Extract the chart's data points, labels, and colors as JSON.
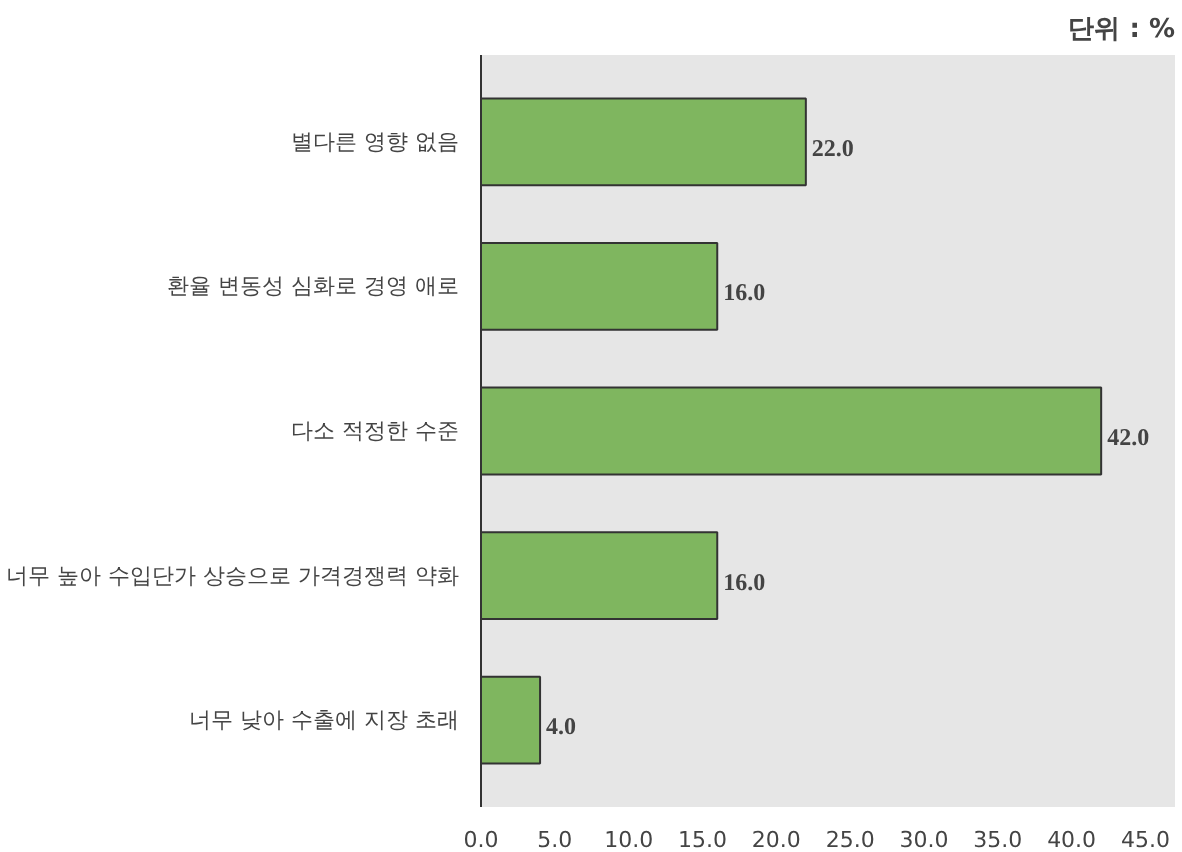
{
  "chart_data": {
    "type": "bar",
    "orientation": "horizontal",
    "annotations": [
      "단위 : %"
    ],
    "categories": [
      "별다른 영향 없음",
      "환율 변동성 심화로 경영 애로",
      "다소 적정한 수준",
      "너무 높아 수입단가 상승으로 가격경쟁력 약화",
      "너무 낮아 수출에 지장 초래"
    ],
    "values": [
      22,
      16,
      42,
      16,
      4
    ],
    "color": "#7fb65f",
    "value_labels": [
      "22.0",
      "16.0",
      "42.0",
      "16.0",
      "4.0"
    ],
    "xlim": [
      0,
      47
    ],
    "xticks": [
      {
        "value": 0,
        "label": "0.0"
      },
      {
        "value": 5,
        "label": "5.0"
      },
      {
        "value": 10,
        "label": "10.0"
      },
      {
        "value": 15,
        "label": "15.0"
      },
      {
        "value": 20,
        "label": "20.0"
      },
      {
        "value": 25,
        "label": "25.0"
      },
      {
        "value": 30,
        "label": "30.0"
      },
      {
        "value": 35,
        "label": "35.0"
      },
      {
        "value": 40,
        "label": "40.0"
      },
      {
        "value": 45,
        "label": "45.0"
      }
    ],
    "grid": false
  }
}
